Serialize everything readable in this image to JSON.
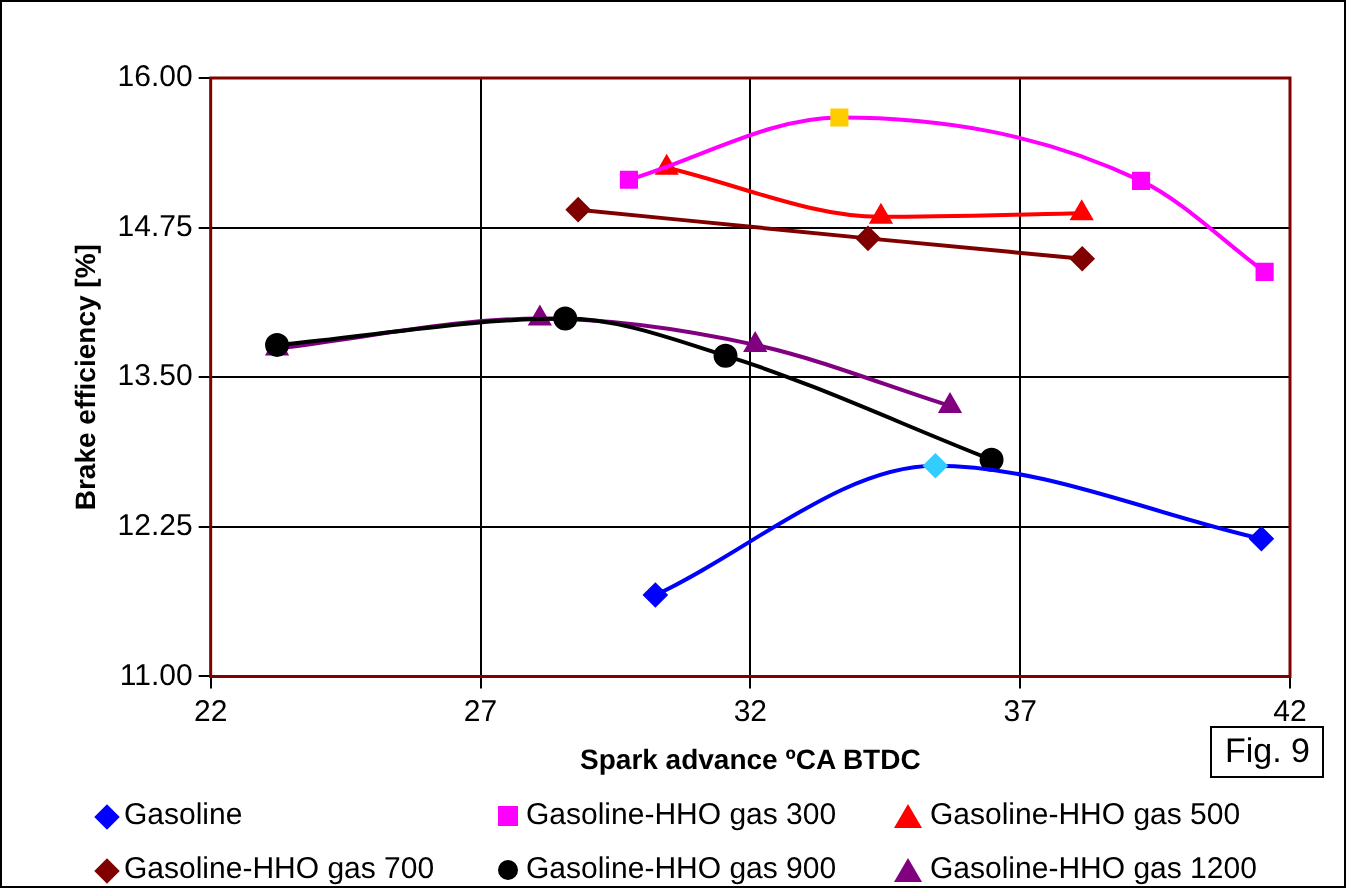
{
  "chart_data": {
    "type": "line",
    "xlabel": "Spark advance ºCA BTDC",
    "ylabel": "Brake efficiency [%]",
    "xlim": [
      22,
      42
    ],
    "xticks": [
      22,
      27,
      32,
      37,
      42
    ],
    "ylim": [
      11,
      16
    ],
    "yticks": [
      {
        "value": 11,
        "label": "11.00"
      },
      {
        "value": 12.25,
        "label": "12.25"
      },
      {
        "value": 13.5,
        "label": "13.50"
      },
      {
        "value": 14.75,
        "label": "14.75"
      },
      {
        "value": 16,
        "label": "16.00"
      }
    ],
    "grid": true,
    "legend": "bottom",
    "line_style": "solid",
    "annotations": [
      "Fig. 9"
    ],
    "series": [
      {
        "name": "Gasoline",
        "color": "#0000ff",
        "colors": [
          "#0000ff",
          "#33ccff",
          "#0000ff"
        ],
        "marker": "diamond",
        "x": [
          30.24,
          35.43,
          41.47
        ],
        "values": [
          11.68,
          12.76,
          12.15
        ]
      },
      {
        "name": "Gasoline-HHO gas 300",
        "color": "#ff00ff",
        "colors": [
          "#ff00ff",
          "#ffcc00",
          "#ff00ff",
          "#ff00ff"
        ],
        "marker": "square",
        "x": [
          29.75,
          33.65,
          39.24,
          41.53
        ],
        "values": [
          15.15,
          15.67,
          15.14,
          14.38
        ]
      },
      {
        "name": "Gasoline-HHO gas 500",
        "color": "#ff0000",
        "marker": "triangle",
        "x": [
          30.45,
          34.42,
          38.14
        ],
        "values": [
          15.25,
          14.84,
          14.87
        ]
      },
      {
        "name": "Gasoline-HHO gas 700",
        "color": "#800000",
        "marker": "diamond",
        "x": [
          28.81,
          34.18,
          38.15
        ],
        "values": [
          14.9,
          14.66,
          14.49
        ]
      },
      {
        "name": "Gasoline-HHO gas 900",
        "color": "#000000",
        "marker": "circle",
        "x": [
          23.23,
          28.57,
          31.54,
          36.47
        ],
        "values": [
          13.77,
          13.99,
          13.68,
          12.81
        ]
      },
      {
        "name": "Gasoline-HHO gas 1200",
        "color": "#800080",
        "marker": "triangle",
        "x": [
          23.23,
          28.1,
          32.09,
          35.7
        ],
        "values": [
          13.74,
          13.99,
          13.77,
          13.26
        ]
      }
    ]
  }
}
